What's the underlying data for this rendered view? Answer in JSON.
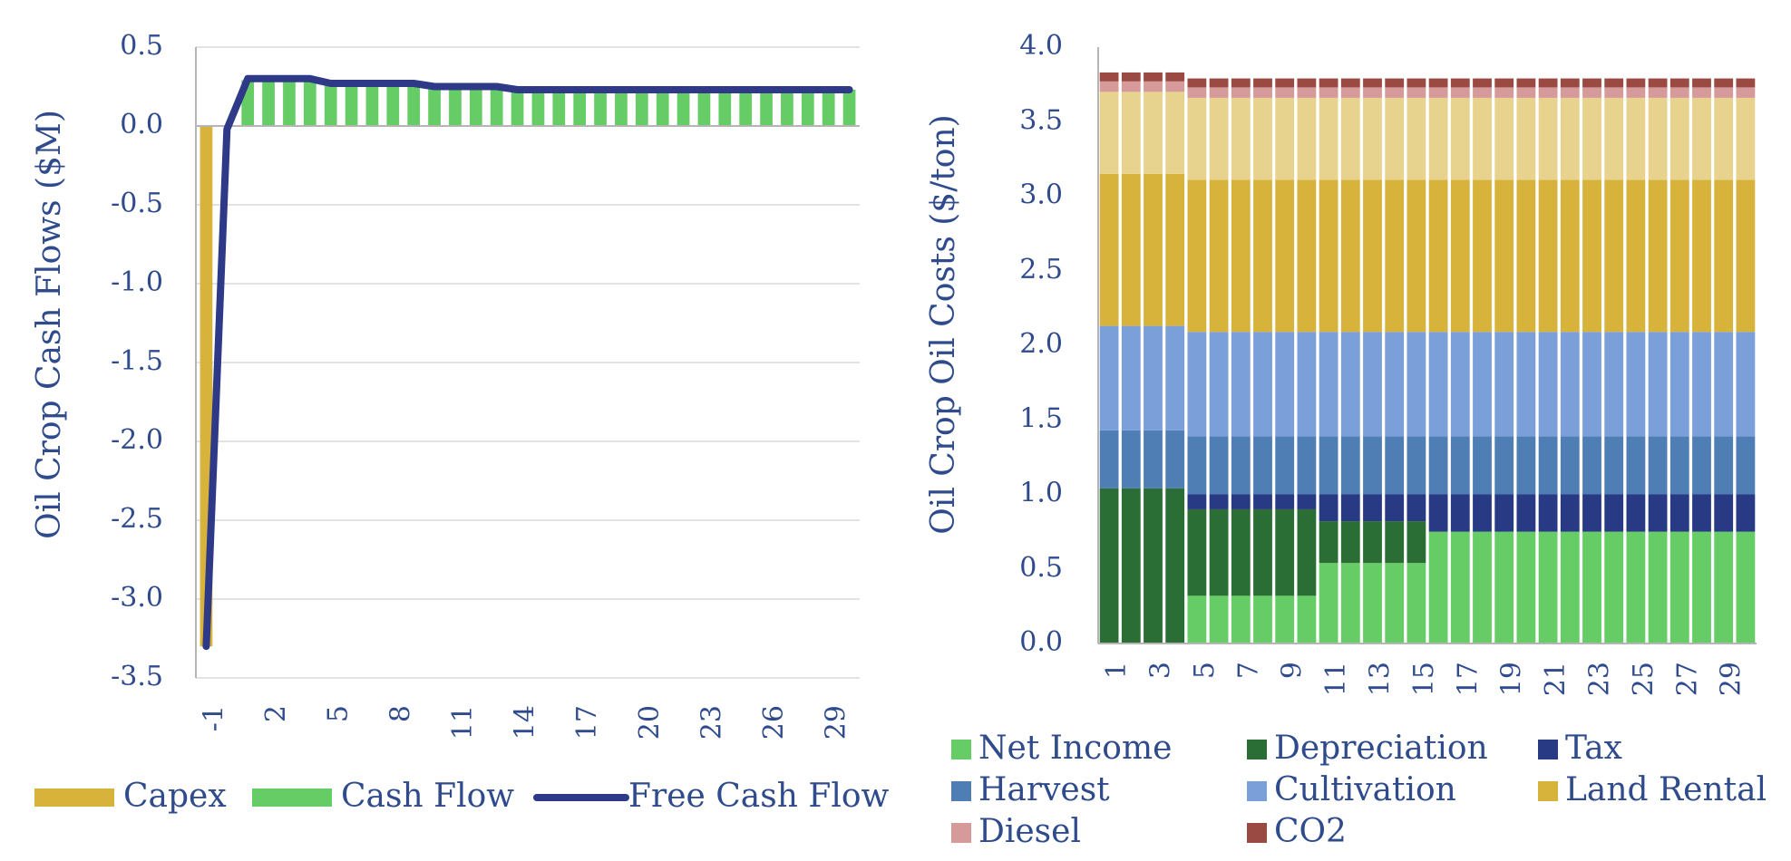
{
  "chart_data": [
    {
      "type": "bar+line",
      "title": "",
      "ylabel": "Oil Crop Cash Flows ($M)",
      "xlabel": "",
      "ylim": [
        -3.5,
        0.5
      ],
      "yticks": [
        "0.5",
        "0.0",
        "-0.5",
        "-1.0",
        "-1.5",
        "-2.0",
        "-2.5",
        "-3.0",
        "-3.5"
      ],
      "grid": true,
      "legend_position": "bottom",
      "x": [
        -1,
        0,
        1,
        2,
        3,
        4,
        5,
        6,
        7,
        8,
        9,
        10,
        11,
        12,
        13,
        14,
        15,
        16,
        17,
        18,
        19,
        20,
        21,
        22,
        23,
        24,
        25,
        26,
        27,
        28,
        29,
        30
      ],
      "xtick_labels": [
        "-1",
        "2",
        "5",
        "8",
        "11",
        "14",
        "17",
        "20",
        "23",
        "26",
        "29"
      ],
      "series": [
        {
          "name": "Capex",
          "kind": "bar",
          "color": "#d8b33c",
          "values": [
            -3.3,
            0,
            0,
            0,
            0,
            0,
            0,
            0,
            0,
            0,
            0,
            0,
            0,
            0,
            0,
            0,
            0,
            0,
            0,
            0,
            0,
            0,
            0,
            0,
            0,
            0,
            0,
            0,
            0,
            0,
            0,
            0
          ]
        },
        {
          "name": "Cash Flow",
          "kind": "bar",
          "color": "#66cc66",
          "values": [
            0,
            0,
            0.29,
            0.29,
            0.29,
            0.29,
            0.27,
            0.27,
            0.27,
            0.27,
            0.27,
            0.25,
            0.25,
            0.25,
            0.25,
            0.23,
            0.23,
            0.23,
            0.23,
            0.23,
            0.23,
            0.23,
            0.23,
            0.23,
            0.23,
            0.23,
            0.23,
            0.23,
            0.23,
            0.23,
            0.23,
            0.23
          ]
        },
        {
          "name": "Free Cash Flow",
          "kind": "line",
          "color": "#2e3a87",
          "values": [
            -3.3,
            -0.02,
            0.3,
            0.3,
            0.3,
            0.3,
            0.27,
            0.27,
            0.27,
            0.27,
            0.27,
            0.25,
            0.25,
            0.25,
            0.25,
            0.23,
            0.23,
            0.23,
            0.23,
            0.23,
            0.23,
            0.23,
            0.23,
            0.23,
            0.23,
            0.23,
            0.23,
            0.23,
            0.23,
            0.23,
            0.23,
            0.23
          ]
        }
      ]
    },
    {
      "type": "stacked-bar",
      "title": "",
      "ylabel": "Oil Crop Oil Costs ($/ton)",
      "xlabel": "",
      "ylim": [
        0,
        4.0
      ],
      "yticks": [
        "4.0",
        "3.5",
        "3.0",
        "2.5",
        "2.0",
        "1.5",
        "1.0",
        "0.5",
        "0.0"
      ],
      "grid": false,
      "legend_position": "bottom",
      "categories": [
        1,
        2,
        3,
        4,
        5,
        6,
        7,
        8,
        9,
        10,
        11,
        12,
        13,
        14,
        15,
        16,
        17,
        18,
        19,
        20,
        21,
        22,
        23,
        24,
        25,
        26,
        27,
        28,
        29,
        30
      ],
      "xtick_labels": [
        "1",
        "3",
        "5",
        "7",
        "9",
        "11",
        "13",
        "15",
        "17",
        "19",
        "21",
        "23",
        "25",
        "27",
        "29"
      ],
      "series": [
        {
          "name": "Net Income",
          "color": "#66cc66",
          "values": [
            0,
            0,
            0,
            0,
            0.32,
            0.32,
            0.32,
            0.32,
            0.32,
            0.32,
            0.54,
            0.54,
            0.54,
            0.54,
            0.54,
            0.75,
            0.75,
            0.75,
            0.75,
            0.75,
            0.75,
            0.75,
            0.75,
            0.75,
            0.75,
            0.75,
            0.75,
            0.75,
            0.75,
            0.75
          ]
        },
        {
          "name": "Depreciation",
          "color": "#2b6e35",
          "values": [
            1.04,
            1.04,
            1.04,
            1.04,
            0.58,
            0.58,
            0.58,
            0.58,
            0.58,
            0.58,
            0.28,
            0.28,
            0.28,
            0.28,
            0.28,
            0,
            0,
            0,
            0,
            0,
            0,
            0,
            0,
            0,
            0,
            0,
            0,
            0,
            0,
            0
          ]
        },
        {
          "name": "Tax",
          "color": "#293a84",
          "values": [
            0,
            0,
            0,
            0,
            0.1,
            0.1,
            0.1,
            0.1,
            0.1,
            0.1,
            0.18,
            0.18,
            0.18,
            0.18,
            0.18,
            0.25,
            0.25,
            0.25,
            0.25,
            0.25,
            0.25,
            0.25,
            0.25,
            0.25,
            0.25,
            0.25,
            0.25,
            0.25,
            0.25,
            0.25
          ]
        },
        {
          "name": "Harvest",
          "color": "#4f7eb4",
          "values": [
            0.39,
            0.39,
            0.39,
            0.39,
            0.39,
            0.39,
            0.39,
            0.39,
            0.39,
            0.39,
            0.39,
            0.39,
            0.39,
            0.39,
            0.39,
            0.39,
            0.39,
            0.39,
            0.39,
            0.39,
            0.39,
            0.39,
            0.39,
            0.39,
            0.39,
            0.39,
            0.39,
            0.39,
            0.39,
            0.39
          ]
        },
        {
          "name": "Cultivation",
          "color": "#7b9fd8",
          "values": [
            0.7,
            0.7,
            0.7,
            0.7,
            0.7,
            0.7,
            0.7,
            0.7,
            0.7,
            0.7,
            0.7,
            0.7,
            0.7,
            0.7,
            0.7,
            0.7,
            0.7,
            0.7,
            0.7,
            0.7,
            0.7,
            0.7,
            0.7,
            0.7,
            0.7,
            0.7,
            0.7,
            0.7,
            0.7,
            0.7
          ]
        },
        {
          "name": "Land Rental",
          "color": "#d8b33c",
          "values": [
            1.02,
            1.02,
            1.02,
            1.02,
            1.02,
            1.02,
            1.02,
            1.02,
            1.02,
            1.02,
            1.02,
            1.02,
            1.02,
            1.02,
            1.02,
            1.02,
            1.02,
            1.02,
            1.02,
            1.02,
            1.02,
            1.02,
            1.02,
            1.02,
            1.02,
            1.02,
            1.02,
            1.02,
            1.02,
            1.02
          ]
        },
        {
          "name": "",
          "color": "#e8d38e",
          "values": [
            0.55,
            0.55,
            0.55,
            0.55,
            0.55,
            0.55,
            0.55,
            0.55,
            0.55,
            0.55,
            0.55,
            0.55,
            0.55,
            0.55,
            0.55,
            0.55,
            0.55,
            0.55,
            0.55,
            0.55,
            0.55,
            0.55,
            0.55,
            0.55,
            0.55,
            0.55,
            0.55,
            0.55,
            0.55,
            0.55
          ]
        },
        {
          "name": "Diesel",
          "color": "#d69a9a",
          "values": [
            0.07,
            0.07,
            0.07,
            0.07,
            0.07,
            0.07,
            0.07,
            0.07,
            0.07,
            0.07,
            0.07,
            0.07,
            0.07,
            0.07,
            0.07,
            0.07,
            0.07,
            0.07,
            0.07,
            0.07,
            0.07,
            0.07,
            0.07,
            0.07,
            0.07,
            0.07,
            0.07,
            0.07,
            0.07,
            0.07
          ]
        },
        {
          "name": "CO2",
          "color": "#9a4a43",
          "values": [
            0.06,
            0.06,
            0.06,
            0.06,
            0.06,
            0.06,
            0.06,
            0.06,
            0.06,
            0.06,
            0.06,
            0.06,
            0.06,
            0.06,
            0.06,
            0.06,
            0.06,
            0.06,
            0.06,
            0.06,
            0.06,
            0.06,
            0.06,
            0.06,
            0.06,
            0.06,
            0.06,
            0.06,
            0.06,
            0.06
          ]
        }
      ]
    }
  ]
}
